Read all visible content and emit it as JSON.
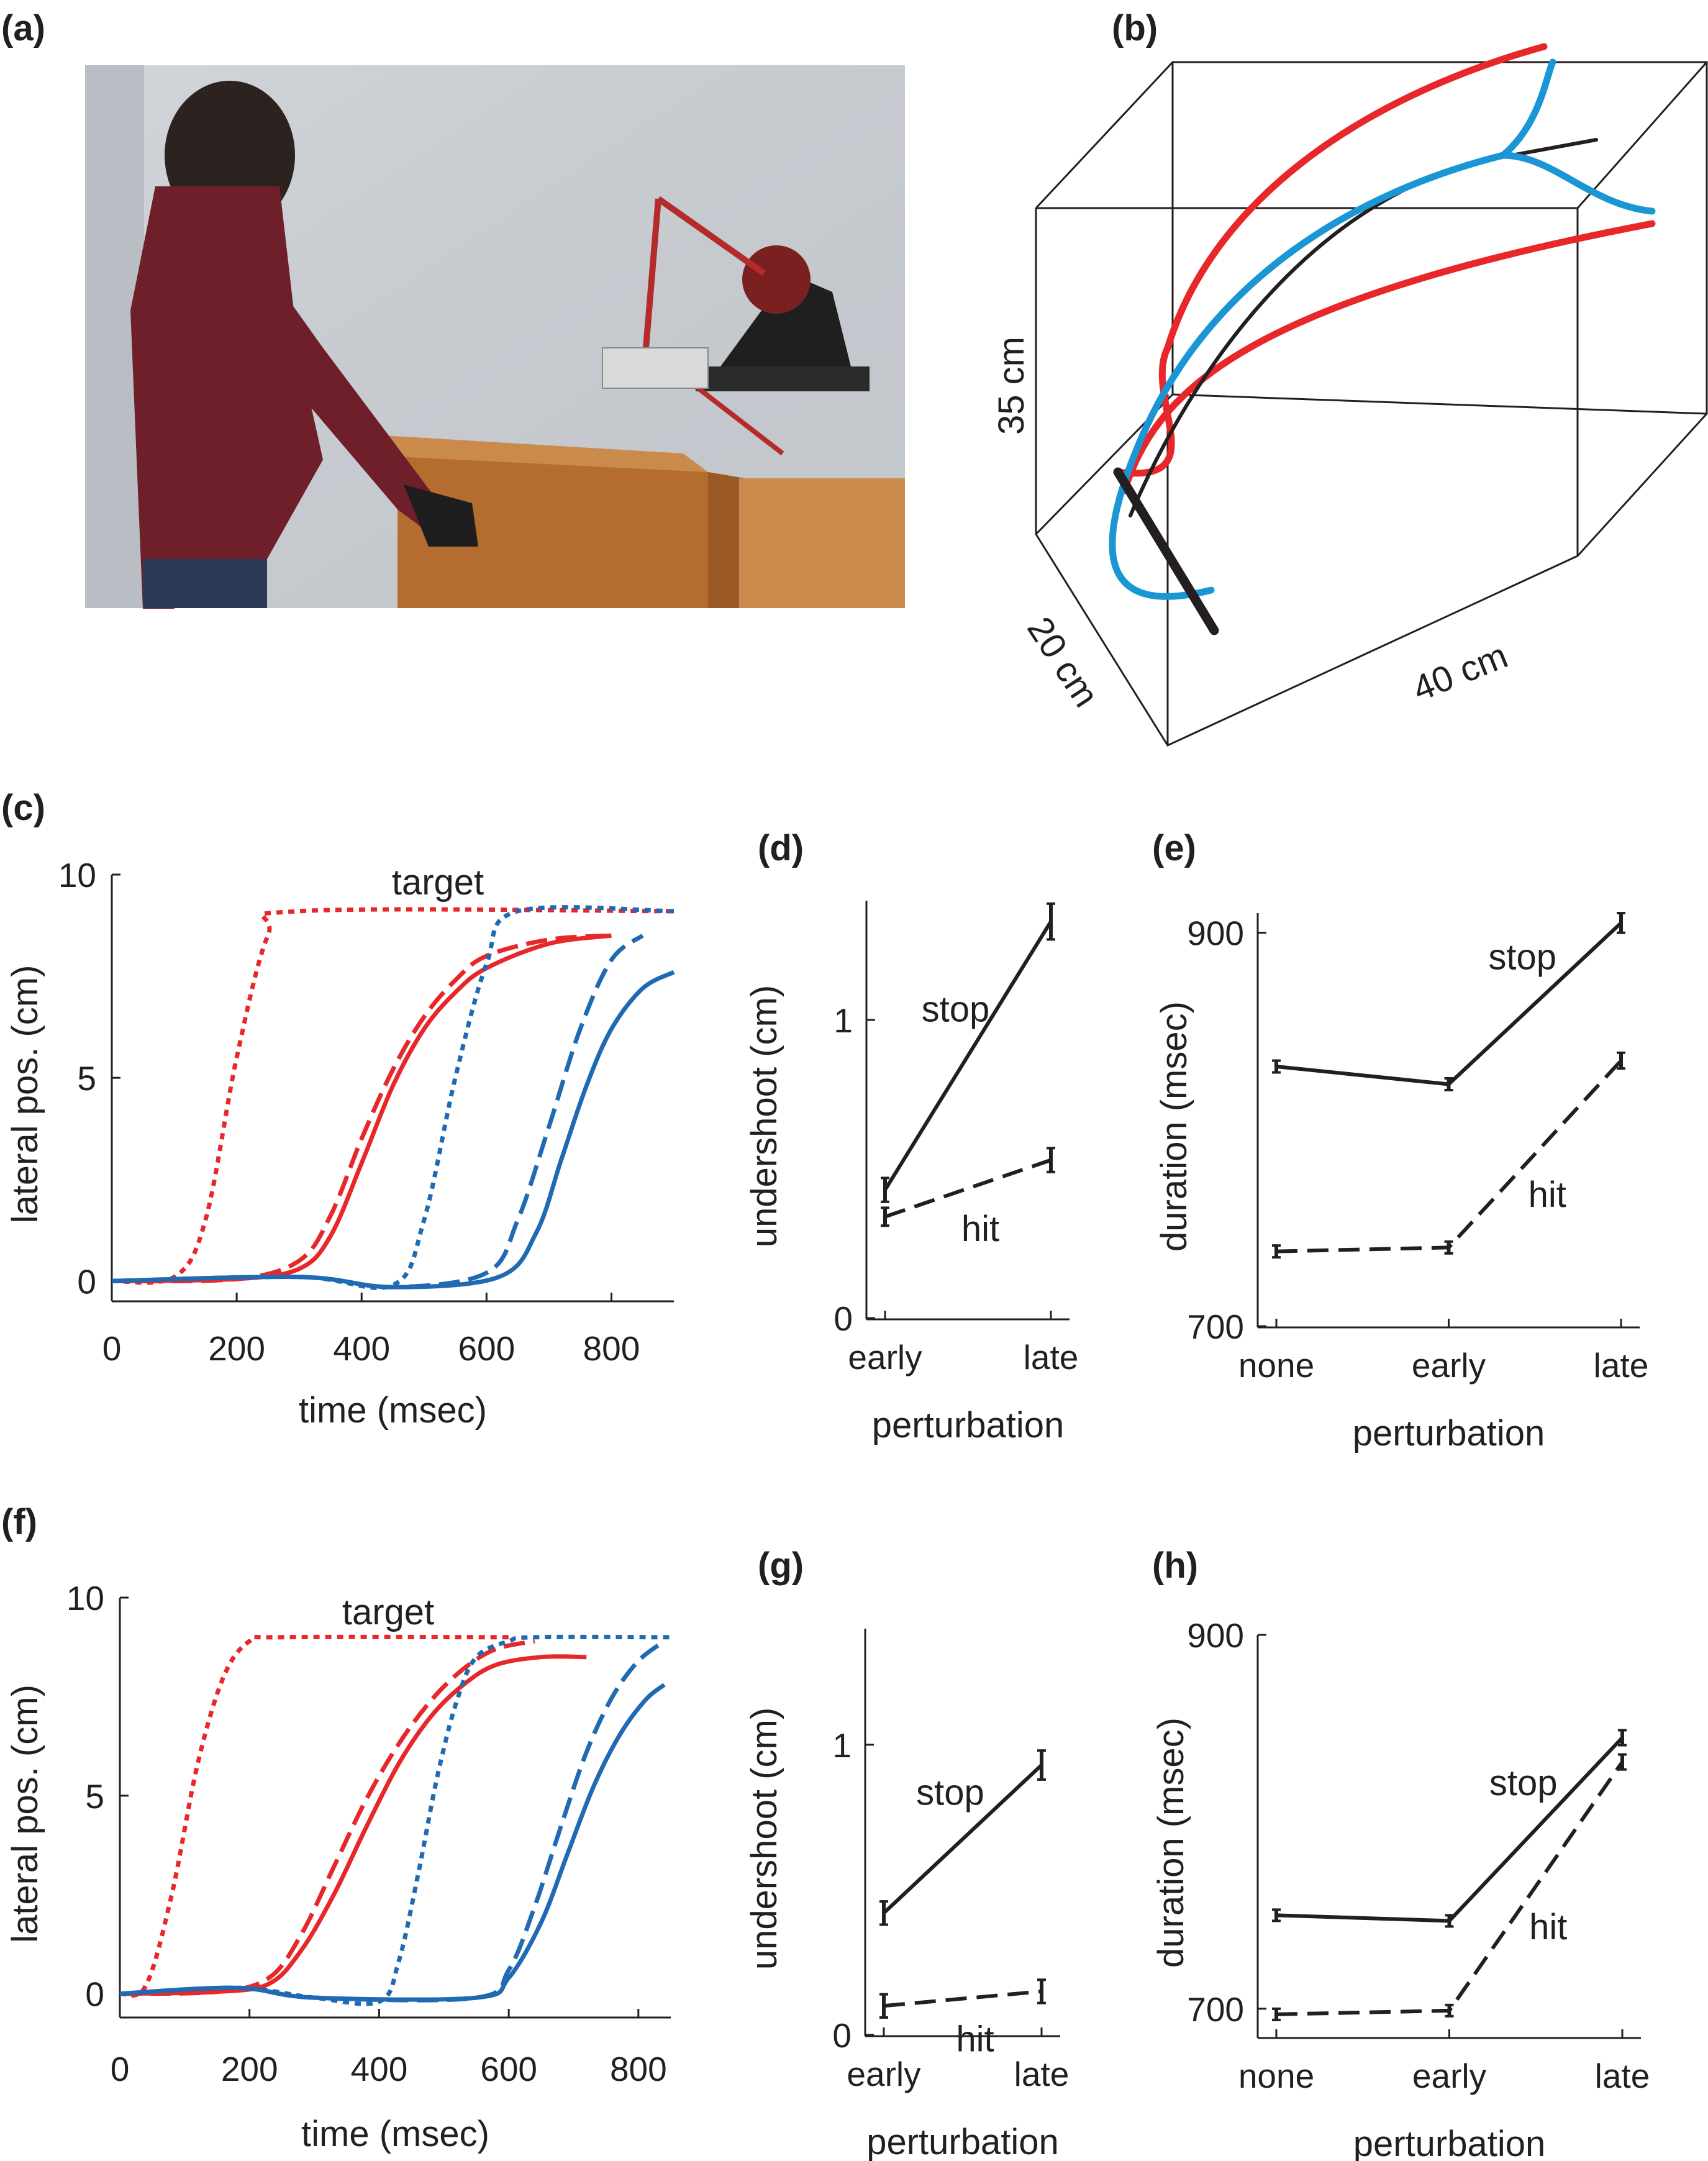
{
  "colors": {
    "red": "#e8272a",
    "blue": "#1f6ab3",
    "cyan": "#1b96d4",
    "black": "#231f20"
  },
  "panels": {
    "a": {
      "label": "(a)"
    },
    "b": {
      "label": "(b)",
      "dims": {
        "height": "35 cm",
        "depth": "20 cm",
        "width": "40 cm"
      }
    },
    "c": {
      "label": "(c)"
    },
    "d": {
      "label": "(d)"
    },
    "e": {
      "label": "(e)"
    },
    "f": {
      "label": "(f)"
    },
    "g": {
      "label": "(g)"
    },
    "h": {
      "label": "(h)"
    }
  },
  "chart_data": [
    {
      "panel": "c",
      "type": "line",
      "xlabel": "time (msec)",
      "ylabel": "lateral pos. (cm)",
      "xlim": [
        0,
        900
      ],
      "ylim": [
        -0.5,
        10
      ],
      "xticks": [
        "0",
        "200",
        "400",
        "600",
        "800"
      ],
      "yticks": [
        "0",
        "5",
        "10"
      ],
      "annotations": [
        "target"
      ],
      "series": [
        {
          "color": "red",
          "dash": "dotted",
          "x": [
            0,
            100,
            150,
            200,
            250,
            300,
            900
          ],
          "y": [
            0,
            0.1,
            1.5,
            5.5,
            8.5,
            9.1,
            9.1
          ]
        },
        {
          "color": "red",
          "dash": "dashed",
          "x": [
            0,
            200,
            300,
            350,
            400,
            450,
            500,
            550,
            600,
            700,
            800
          ],
          "y": [
            0,
            0.05,
            0.5,
            1.6,
            3.5,
            5.2,
            6.5,
            7.4,
            8.0,
            8.4,
            8.5
          ]
        },
        {
          "color": "red",
          "dash": "solid",
          "x": [
            0,
            200,
            300,
            350,
            400,
            450,
            500,
            550,
            600,
            700,
            800
          ],
          "y": [
            0,
            0.05,
            0.3,
            1.1,
            2.9,
            4.8,
            6.2,
            7.1,
            7.7,
            8.3,
            8.5
          ]
        },
        {
          "color": "blue",
          "dash": "dotted",
          "x": [
            0,
            300,
            450,
            500,
            550,
            600,
            650,
            900
          ],
          "y": [
            0,
            0.1,
            -0.1,
            1.5,
            5.0,
            7.8,
            9.1,
            9.1
          ]
        },
        {
          "color": "blue",
          "dash": "dashed",
          "x": [
            0,
            300,
            450,
            600,
            650,
            700,
            750,
            800,
            850
          ],
          "y": [
            0,
            0.1,
            -0.15,
            0.2,
            1.5,
            3.8,
            6.2,
            7.9,
            8.5
          ]
        },
        {
          "color": "blue",
          "dash": "solid",
          "x": [
            0,
            300,
            450,
            620,
            680,
            720,
            760,
            800,
            850,
            900
          ],
          "y": [
            0,
            0.1,
            -0.15,
            0.1,
            1.2,
            3.0,
            4.8,
            6.2,
            7.2,
            7.6
          ]
        }
      ]
    },
    {
      "panel": "d",
      "type": "line",
      "xlabel": "perturbation",
      "ylabel": "undershoot (cm)",
      "categories": [
        "early",
        "late"
      ],
      "ylim": [
        0,
        1.4
      ],
      "yticks": [
        "0",
        "1"
      ],
      "series": [
        {
          "name": "stop",
          "dash": "solid",
          "values": [
            0.43,
            1.33
          ],
          "err": [
            0.04,
            0.06
          ]
        },
        {
          "name": "hit",
          "dash": "dashed",
          "values": [
            0.34,
            0.53
          ],
          "err": [
            0.03,
            0.04
          ]
        }
      ]
    },
    {
      "panel": "e",
      "type": "line",
      "xlabel": "perturbation",
      "ylabel": "duration (msec)",
      "categories": [
        "none",
        "early",
        "late"
      ],
      "ylim": [
        700,
        910
      ],
      "yticks": [
        "700",
        "900"
      ],
      "series": [
        {
          "name": "stop",
          "dash": "solid",
          "values": [
            832,
            823,
            905
          ],
          "err": [
            3,
            3,
            5
          ]
        },
        {
          "name": "hit",
          "dash": "dashed",
          "values": [
            738,
            740,
            835
          ],
          "err": [
            3,
            3,
            4
          ]
        }
      ]
    },
    {
      "panel": "f",
      "type": "line",
      "xlabel": "time (msec)",
      "ylabel": "lateral pos. (cm)",
      "xlim": [
        0,
        850
      ],
      "ylim": [
        -0.6,
        10
      ],
      "xticks": [
        "0",
        "200",
        "400",
        "600",
        "800"
      ],
      "yticks": [
        "0",
        "5",
        "10"
      ],
      "annotations": [
        "target"
      ],
      "series": [
        {
          "color": "red",
          "dash": "dotted",
          "x": [
            0,
            40,
            80,
            120,
            160,
            200,
            250,
            600
          ],
          "y": [
            0,
            0.2,
            2.5,
            5.8,
            8.0,
            8.9,
            9.0,
            9.0
          ]
        },
        {
          "color": "red",
          "dash": "dashed",
          "x": [
            0,
            150,
            230,
            280,
            330,
            380,
            430,
            480,
            530,
            580,
            640
          ],
          "y": [
            0,
            0.05,
            0.4,
            1.5,
            3.2,
            4.9,
            6.3,
            7.4,
            8.2,
            8.7,
            8.9
          ]
        },
        {
          "color": "red",
          "dash": "solid",
          "x": [
            0,
            150,
            230,
            280,
            330,
            380,
            430,
            480,
            530,
            580,
            650,
            720
          ],
          "y": [
            0,
            0.05,
            0.25,
            1.1,
            2.5,
            4.2,
            5.8,
            7.0,
            7.8,
            8.3,
            8.5,
            8.5
          ]
        },
        {
          "color": "blue",
          "dash": "dotted",
          "x": [
            0,
            180,
            300,
            400,
            430,
            460,
            490,
            520,
            550,
            600,
            640,
            850
          ],
          "y": [
            0,
            0.15,
            -0.1,
            -0.2,
            0.8,
            3.0,
            5.5,
            7.4,
            8.5,
            8.9,
            9.0,
            9.0
          ]
        },
        {
          "color": "blue",
          "dash": "dashed",
          "x": [
            0,
            180,
            300,
            550,
            600,
            640,
            680,
            720,
            760,
            800,
            840
          ],
          "y": [
            0,
            0.15,
            -0.1,
            -0.1,
            0.6,
            2.2,
            4.2,
            6.1,
            7.5,
            8.4,
            8.9
          ]
        },
        {
          "color": "blue",
          "dash": "solid",
          "x": [
            0,
            180,
            300,
            550,
            600,
            650,
            690,
            730,
            770,
            810,
            840
          ],
          "y": [
            0,
            0.15,
            -0.1,
            -0.1,
            0.4,
            1.8,
            3.5,
            5.2,
            6.5,
            7.4,
            7.8
          ]
        }
      ]
    },
    {
      "panel": "g",
      "type": "line",
      "xlabel": "perturbation",
      "ylabel": "undershoot (cm)",
      "categories": [
        "early",
        "late"
      ],
      "ylim": [
        0,
        1.4
      ],
      "yticks": [
        "0",
        "1"
      ],
      "series": [
        {
          "name": "stop",
          "dash": "solid",
          "values": [
            0.42,
            0.93
          ],
          "err": [
            0.04,
            0.05
          ]
        },
        {
          "name": "hit",
          "dash": "dashed",
          "values": [
            0.1,
            0.15
          ],
          "err": [
            0.04,
            0.04
          ]
        }
      ]
    },
    {
      "panel": "h",
      "type": "line",
      "xlabel": "perturbation",
      "ylabel": "duration (msec)",
      "categories": [
        "none",
        "early",
        "late"
      ],
      "ylim": [
        685,
        900
      ],
      "yticks": [
        "700",
        "900"
      ],
      "series": [
        {
          "name": "stop",
          "dash": "solid",
          "values": [
            750,
            747,
            845
          ],
          "err": [
            3,
            3,
            4
          ]
        },
        {
          "name": "hit",
          "dash": "dashed",
          "values": [
            697,
            699,
            832
          ],
          "err": [
            3,
            3,
            4
          ]
        }
      ]
    }
  ]
}
